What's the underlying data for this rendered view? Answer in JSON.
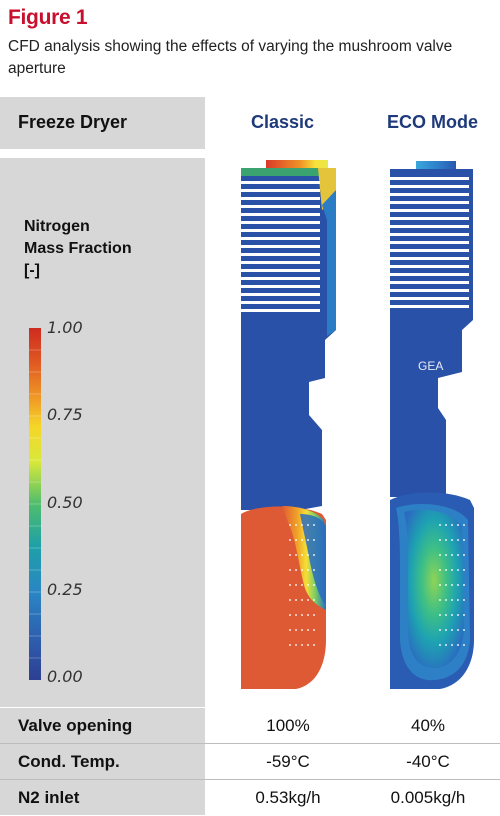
{
  "figure": {
    "title": "Figure 1",
    "caption": "CFD analysis showing the effects of varying the mushroom valve aperture"
  },
  "header": {
    "left_label": "Freeze Dryer",
    "columns": [
      "Classic",
      "ECO Mode"
    ],
    "column_color": "#1f3a7a"
  },
  "legend": {
    "title_lines": [
      "Nitrogen",
      "Mass Fraction",
      "[-]"
    ],
    "ticks": [
      "1.00",
      "0.75",
      "0.50",
      "0.25",
      "0.00"
    ],
    "colormap": [
      "#cd2b20",
      "#e05a22",
      "#ef9a26",
      "#f5d628",
      "#d8e83a",
      "#8dd451",
      "#36b87a",
      "#1ea0a8",
      "#2a86c4",
      "#2e5fae",
      "#2d3f92"
    ]
  },
  "visual": {
    "logo_text": "GEA",
    "fluid_blue": "#2a51a8",
    "fluid_red": "#de5a34"
  },
  "table": {
    "rows": [
      {
        "label": "Valve opening",
        "classic": "100%",
        "eco": "40%"
      },
      {
        "label": "Cond. Temp.",
        "classic": "-59°C",
        "eco": "-40°C"
      },
      {
        "label": "N2 inlet",
        "classic": "0.53kg/h",
        "eco": "0.005kg/h"
      }
    ]
  }
}
